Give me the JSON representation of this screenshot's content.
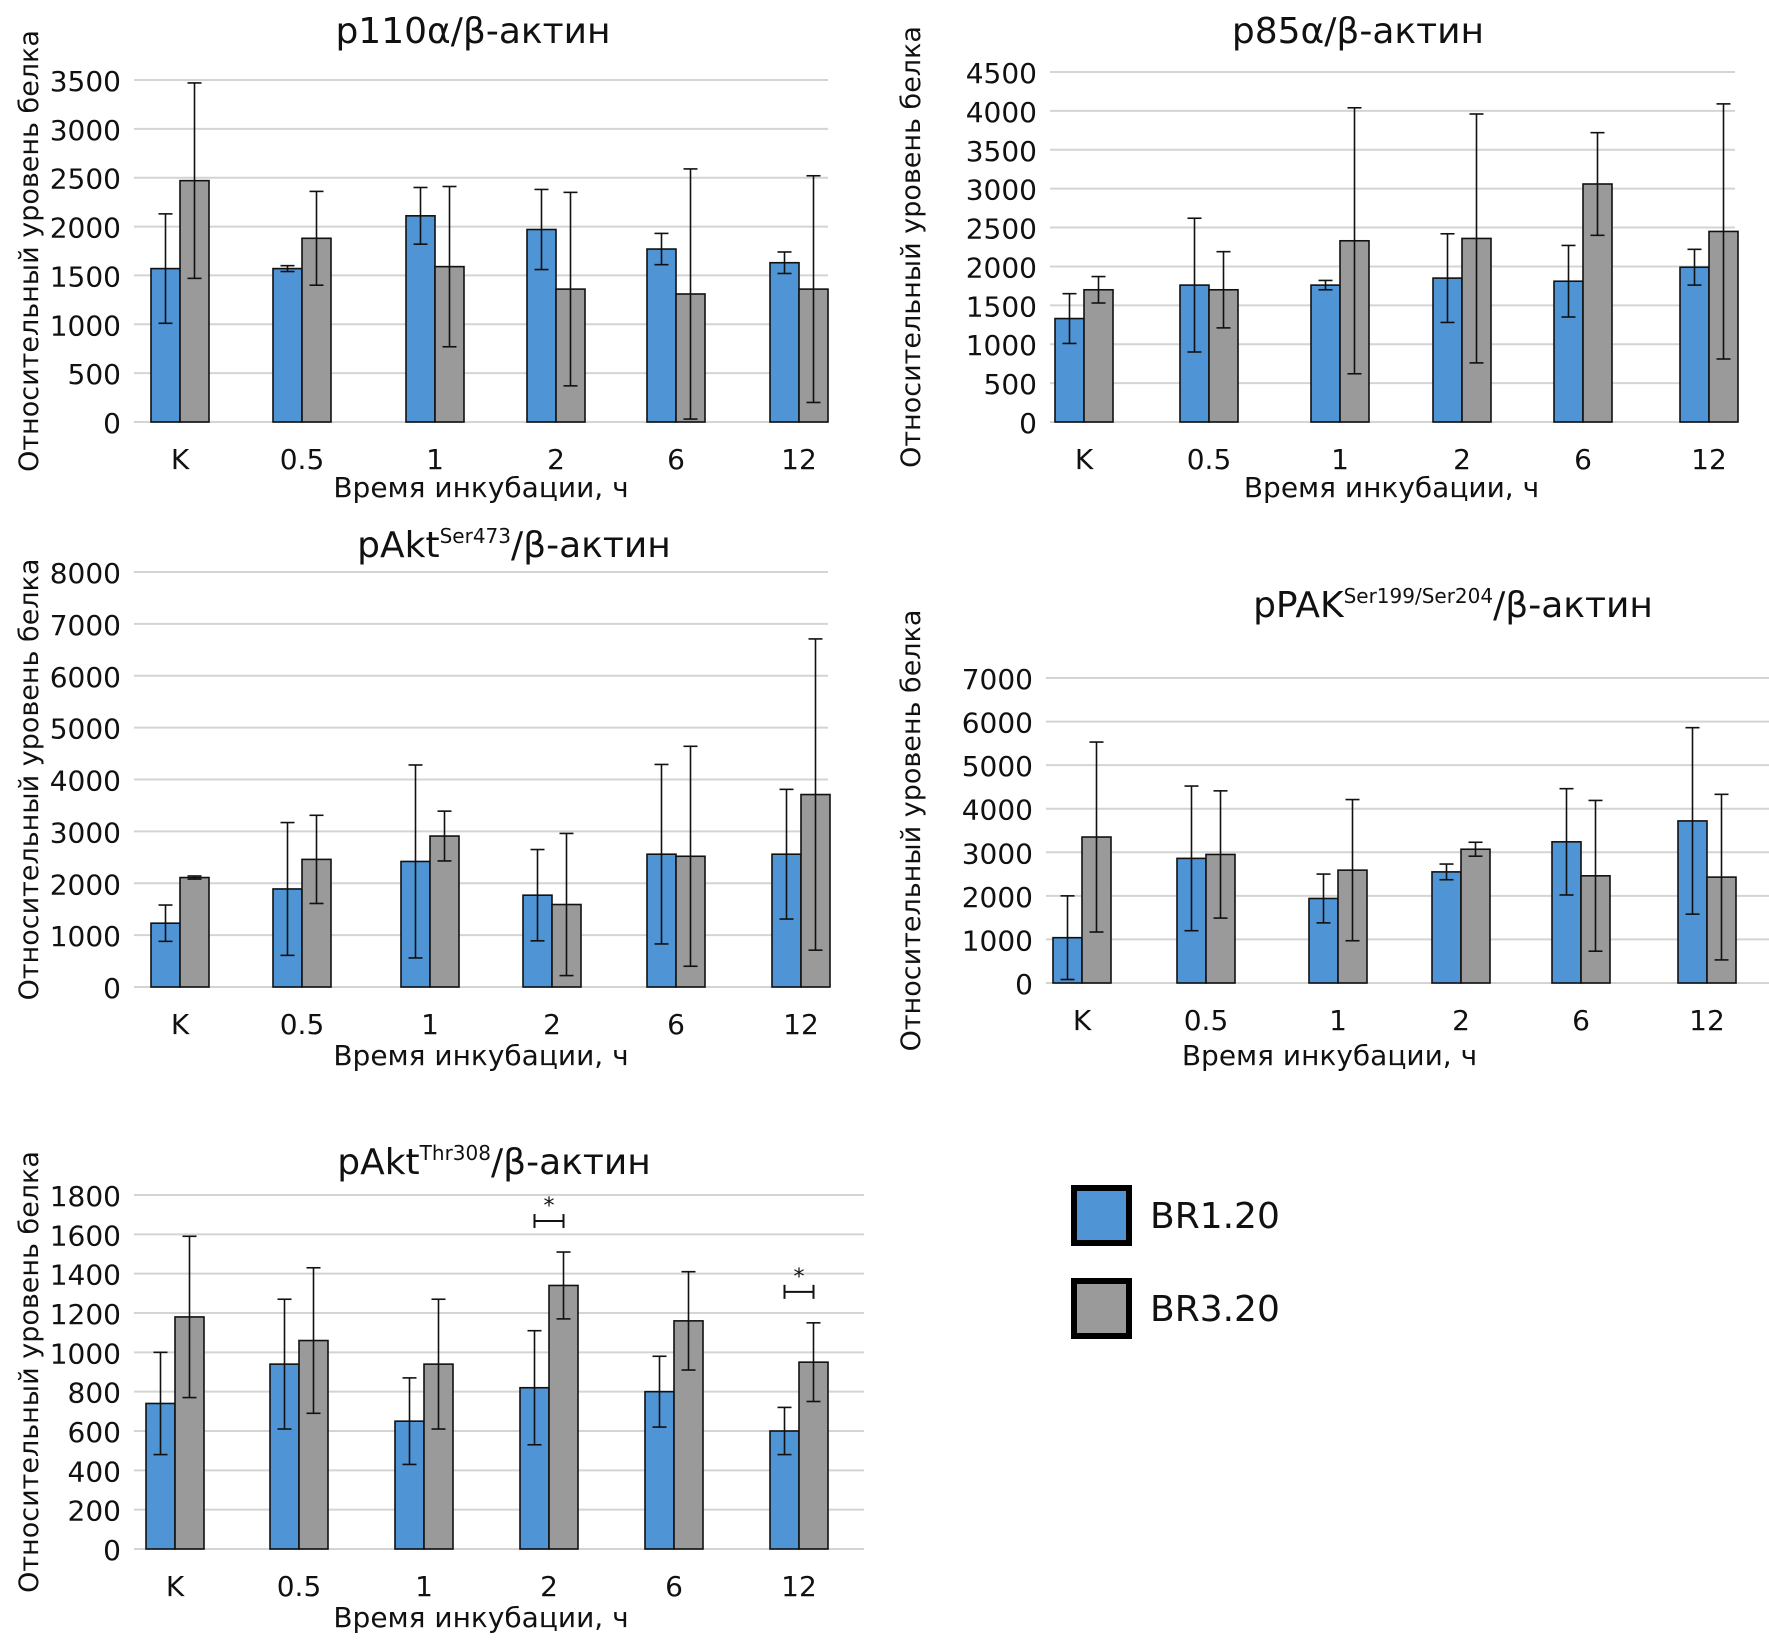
{
  "colors": {
    "br120": "#4f94d4",
    "br320": "#9a9a9a",
    "grid": "#d4d4d4",
    "errorbar": "#111111"
  },
  "legend": {
    "items": [
      {
        "label": "BR1.20",
        "color": "#4f94d4"
      },
      {
        "label": "BR3.20",
        "color": "#9a9a9a"
      }
    ]
  },
  "chart_data": [
    {
      "type": "bar",
      "title": "p110α/β-актин",
      "title_main": "p110α",
      "title_sup": "",
      "title_tail": "/β-актин",
      "xlabel": "Время инкубации, ч",
      "ylabel": "Относительный уровень белка",
      "categories": [
        "K",
        "0.5",
        "1",
        "2",
        "6",
        "12"
      ],
      "ylim": [
        0,
        3500
      ],
      "yticks": [
        0,
        500,
        1000,
        1500,
        2000,
        2500,
        3000,
        3500
      ],
      "grid": true,
      "series": [
        {
          "name": "BR1.20",
          "values": [
            1570,
            1570,
            2110,
            1970,
            1770,
            1630
          ],
          "err": [
            560,
            30,
            290,
            410,
            160,
            110
          ]
        },
        {
          "name": "BR3.20",
          "values": [
            2470,
            1880,
            1590,
            1360,
            1310,
            1360
          ],
          "err": [
            1000,
            480,
            820,
            990,
            1280,
            1160
          ]
        }
      ],
      "significance": []
    },
    {
      "type": "bar",
      "title": "p85α/β-актин",
      "title_main": "p85α",
      "title_sup": "",
      "title_tail": "/β-актин",
      "xlabel": "Время инкубации, ч",
      "ylabel": "Относительный уровень белка",
      "categories": [
        "K",
        "0.5",
        "1",
        "2",
        "6",
        "12"
      ],
      "ylim": [
        0,
        4500
      ],
      "yticks": [
        0,
        500,
        1000,
        1500,
        2000,
        2500,
        3000,
        3500,
        4000,
        4500
      ],
      "grid": true,
      "series": [
        {
          "name": "BR1.20",
          "values": [
            1330,
            1760,
            1760,
            1850,
            1810,
            1990
          ],
          "err": [
            320,
            860,
            60,
            570,
            460,
            230
          ]
        },
        {
          "name": "BR3.20",
          "values": [
            1700,
            1700,
            2330,
            2360,
            3060,
            2450
          ],
          "err": [
            170,
            490,
            1710,
            1600,
            660,
            1640
          ]
        }
      ],
      "significance": []
    },
    {
      "type": "bar",
      "title": "pAktSer473/β-актин",
      "title_main": "pAkt",
      "title_sup": "Ser473",
      "title_tail": "/β-актин",
      "xlabel": "Время инкубации, ч",
      "ylabel": "Относительный уровень белка",
      "categories": [
        "K",
        "0.5",
        "1",
        "2",
        "6",
        "12"
      ],
      "ylim": [
        0,
        8000
      ],
      "yticks": [
        0,
        1000,
        2000,
        3000,
        4000,
        5000,
        6000,
        7000,
        8000
      ],
      "grid": true,
      "series": [
        {
          "name": "BR1.20",
          "values": [
            1230,
            1890,
            2420,
            1770,
            2560,
            2560
          ],
          "err": [
            350,
            1280,
            1860,
            880,
            1730,
            1250
          ]
        },
        {
          "name": "BR3.20",
          "values": [
            2110,
            2460,
            2910,
            1590,
            2520,
            3710
          ],
          "err": [
            30,
            850,
            480,
            1370,
            2120,
            3000
          ]
        }
      ],
      "significance": []
    },
    {
      "type": "bar",
      "title": "pPAKSer199/Ser204/β-актин",
      "title_main": "pPAK",
      "title_sup": "Ser199/Ser204",
      "title_tail": "/β-актин",
      "xlabel": "Время инкубации, ч",
      "ylabel": "Относительный уровень белка",
      "categories": [
        "K",
        "0.5",
        "1",
        "2",
        "6",
        "12"
      ],
      "ylim": [
        0,
        7000
      ],
      "yticks": [
        0,
        1000,
        2000,
        3000,
        4000,
        5000,
        6000,
        7000
      ],
      "grid": true,
      "series": [
        {
          "name": "BR1.20",
          "values": [
            1040,
            2860,
            1940,
            2550,
            3240,
            3720
          ],
          "err": [
            960,
            1660,
            560,
            180,
            1220,
            2140
          ]
        },
        {
          "name": "BR3.20",
          "values": [
            3350,
            2950,
            2590,
            3070,
            2460,
            2430
          ],
          "err": [
            2180,
            1460,
            1620,
            160,
            1730,
            1900
          ]
        }
      ],
      "significance": []
    },
    {
      "type": "bar",
      "title": "pAktThr308/β-актин",
      "title_main": "pAkt",
      "title_sup": "Thr308",
      "title_tail": "/β-актин",
      "xlabel": "Время инкубации, ч",
      "ylabel": "Относительный уровень белка",
      "categories": [
        "K",
        "0.5",
        "1",
        "2",
        "6",
        "12"
      ],
      "ylim": [
        0,
        1800
      ],
      "yticks": [
        0,
        200,
        400,
        600,
        800,
        1000,
        1200,
        1400,
        1600,
        1800
      ],
      "grid": true,
      "series": [
        {
          "name": "BR1.20",
          "values": [
            740,
            940,
            650,
            820,
            800,
            600
          ],
          "err": [
            260,
            330,
            220,
            290,
            180,
            120
          ]
        },
        {
          "name": "BR3.20",
          "values": [
            1180,
            1060,
            940,
            1340,
            1160,
            950
          ],
          "err": [
            410,
            370,
            330,
            170,
            250,
            200
          ]
        }
      ],
      "significance": [
        {
          "category": "2",
          "label": "*"
        },
        {
          "category": "12",
          "label": "*"
        }
      ]
    }
  ]
}
